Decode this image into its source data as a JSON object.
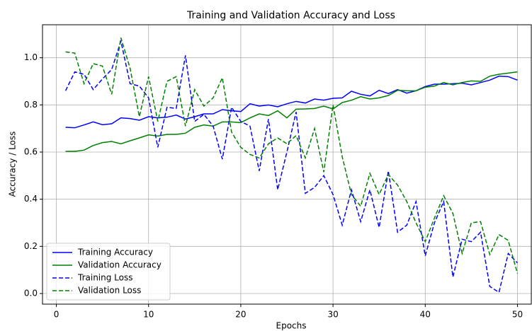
{
  "chart_data": {
    "type": "line",
    "title": "Training and Validation Accuracy and Loss",
    "xlabel": "Epochs",
    "ylabel": "Accuracy / Loss",
    "x": [
      1,
      2,
      3,
      4,
      5,
      6,
      7,
      8,
      9,
      10,
      11,
      12,
      13,
      14,
      15,
      16,
      17,
      18,
      19,
      20,
      21,
      22,
      23,
      24,
      25,
      26,
      27,
      28,
      29,
      30,
      31,
      32,
      33,
      34,
      35,
      36,
      37,
      38,
      39,
      40,
      41,
      42,
      43,
      44,
      45,
      46,
      47,
      48,
      49,
      50
    ],
    "series": [
      {
        "name": "Training Accuracy",
        "color": "#0000ff",
        "linestyle": "solid",
        "values": [
          0.705,
          0.703,
          0.715,
          0.728,
          0.716,
          0.72,
          0.745,
          0.742,
          0.735,
          0.75,
          0.745,
          0.748,
          0.757,
          0.74,
          0.75,
          0.762,
          0.762,
          0.78,
          0.775,
          0.772,
          0.805,
          0.795,
          0.8,
          0.792,
          0.805,
          0.815,
          0.808,
          0.825,
          0.82,
          0.828,
          0.83,
          0.858,
          0.845,
          0.838,
          0.862,
          0.848,
          0.865,
          0.85,
          0.86,
          0.878,
          0.888,
          0.888,
          0.89,
          0.892,
          0.885,
          0.895,
          0.905,
          0.922,
          0.92,
          0.905
        ]
      },
      {
        "name": "Validation Accuracy",
        "color": "#008000",
        "linestyle": "solid",
        "values": [
          0.603,
          0.603,
          0.608,
          0.628,
          0.64,
          0.645,
          0.635,
          0.648,
          0.66,
          0.673,
          0.668,
          0.675,
          0.675,
          0.68,
          0.705,
          0.715,
          0.71,
          0.728,
          0.728,
          0.725,
          0.745,
          0.762,
          0.755,
          0.775,
          0.745,
          0.782,
          0.783,
          0.785,
          0.795,
          0.783,
          0.81,
          0.82,
          0.835,
          0.825,
          0.83,
          0.84,
          0.862,
          0.86,
          0.86,
          0.875,
          0.88,
          0.895,
          0.885,
          0.895,
          0.902,
          0.9,
          0.922,
          0.93,
          0.935,
          0.94
        ]
      },
      {
        "name": "Training Loss",
        "color": "#0000ff",
        "linestyle": "dashed",
        "values": [
          0.86,
          0.94,
          0.93,
          0.865,
          0.91,
          0.95,
          1.07,
          0.89,
          0.88,
          0.83,
          0.62,
          0.79,
          0.785,
          1.01,
          0.73,
          0.76,
          0.71,
          0.57,
          0.79,
          0.73,
          0.71,
          0.52,
          0.74,
          0.44,
          0.6,
          0.77,
          0.425,
          0.45,
          0.5,
          0.42,
          0.29,
          0.44,
          0.305,
          0.44,
          0.28,
          0.52,
          0.26,
          0.29,
          0.39,
          0.16,
          0.3,
          0.39,
          0.07,
          0.23,
          0.22,
          0.26,
          0.03,
          0.005,
          0.17,
          0.13
        ]
      },
      {
        "name": "Validation Loss",
        "color": "#008000",
        "linestyle": "dashed",
        "values": [
          1.025,
          1.02,
          0.89,
          0.975,
          0.965,
          0.845,
          1.085,
          0.955,
          0.75,
          0.92,
          0.73,
          0.9,
          0.92,
          0.71,
          0.865,
          0.795,
          0.83,
          0.915,
          0.685,
          0.62,
          0.59,
          0.575,
          0.635,
          0.66,
          0.635,
          0.67,
          0.575,
          0.7,
          0.515,
          0.8,
          0.58,
          0.42,
          0.37,
          0.51,
          0.42,
          0.505,
          0.46,
          0.39,
          0.3,
          0.22,
          0.32,
          0.415,
          0.34,
          0.17,
          0.3,
          0.305,
          0.165,
          0.25,
          0.225,
          0.085
        ]
      }
    ],
    "xlim": [
      -1.5,
      51.5
    ],
    "xticks": [
      0,
      10,
      20,
      30,
      40,
      50
    ],
    "ylim": [
      -0.045,
      1.14
    ],
    "yticks": [
      {
        "value": 0,
        "label": "0.0"
      },
      {
        "value": 0.2,
        "label": "0.2"
      },
      {
        "value": 0.4,
        "label": "0.4"
      },
      {
        "value": 0.6,
        "label": "0.6"
      },
      {
        "value": 0.8,
        "label": "0.8"
      },
      {
        "value": 1,
        "label": "1.0"
      }
    ],
    "grid": true,
    "legend": "lower left"
  }
}
